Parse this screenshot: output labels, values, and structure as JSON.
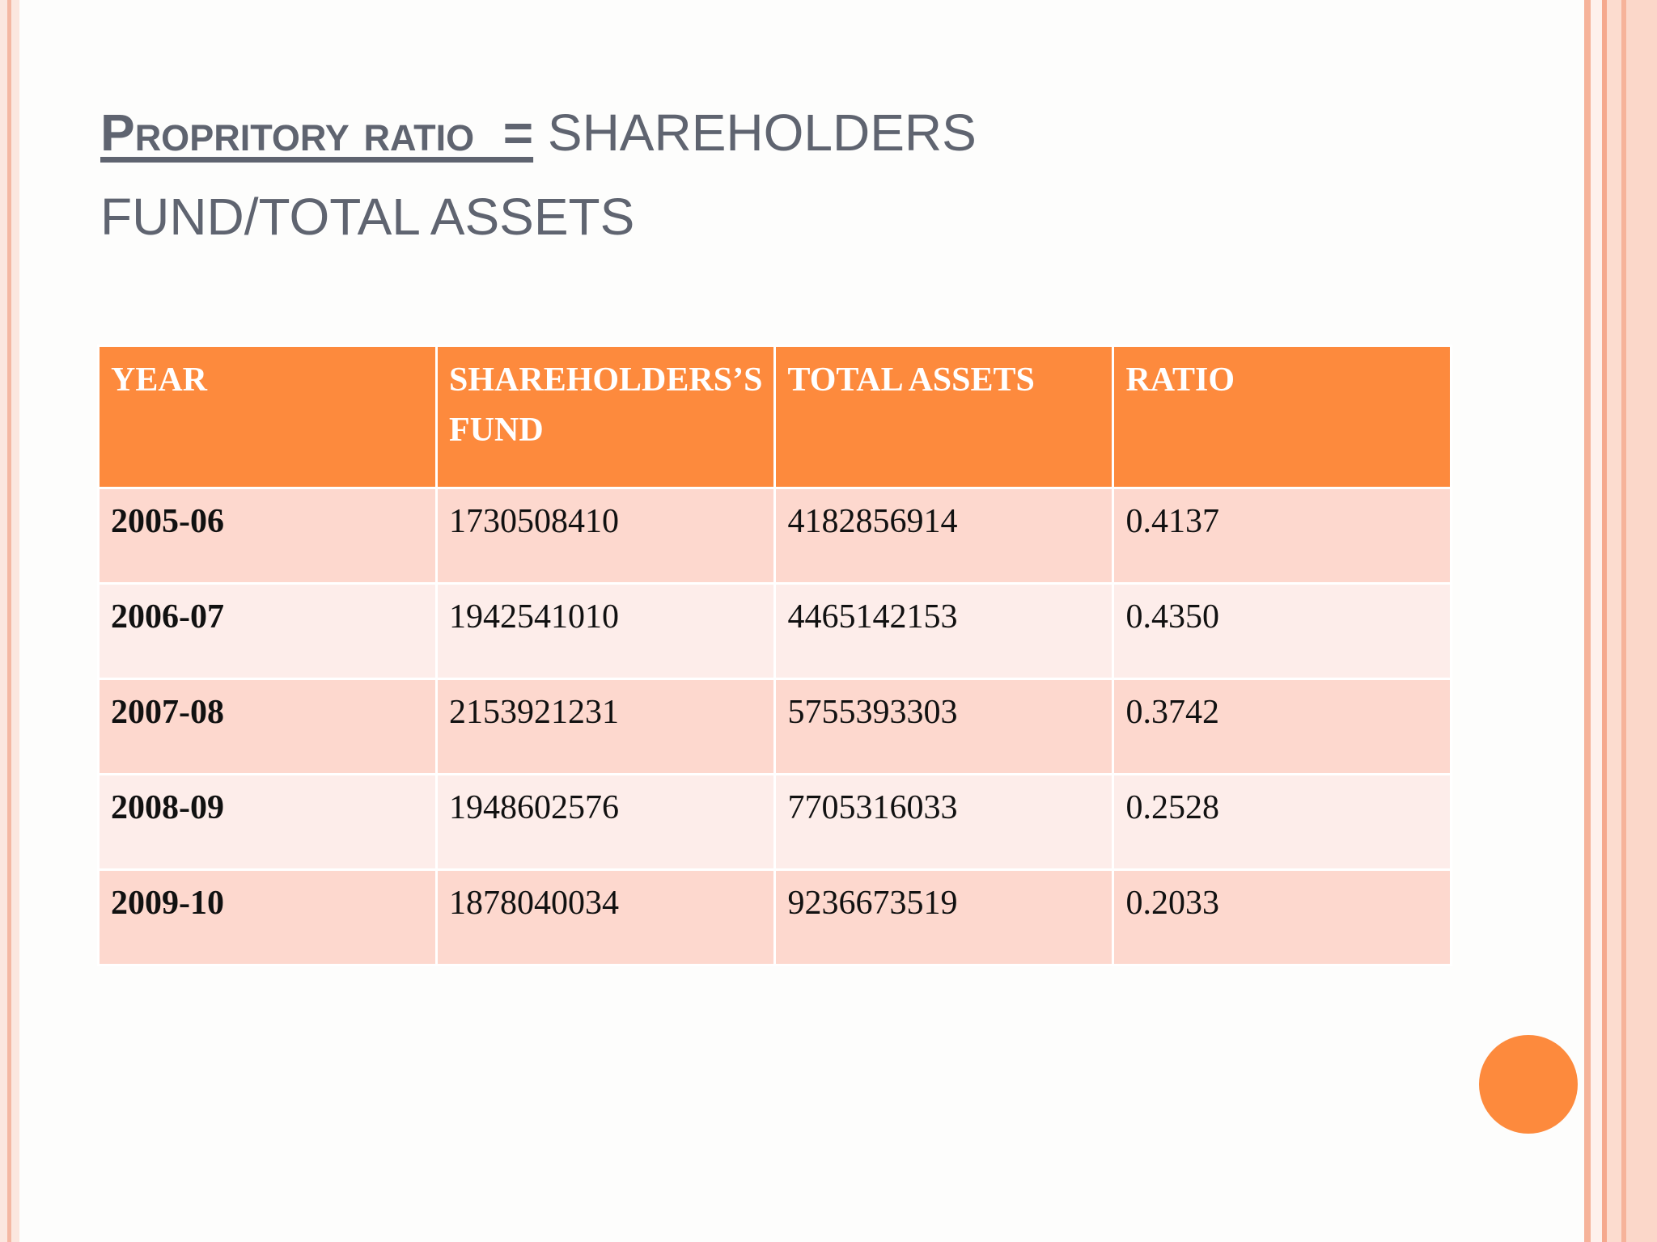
{
  "slide": {
    "title_bold": "Propritory ratio  =",
    "title_rest_line1": " SHAREHOLDERS",
    "title_rest_line2": "FUND/TOTAL ASSETS"
  },
  "table": {
    "headers": [
      "YEAR",
      "SHAREHOLDERS’S FUND",
      "TOTAL ASSETS",
      "RATIO"
    ],
    "rows": [
      {
        "year": "2005-06",
        "fund": "1730508410",
        "assets": "4182856914",
        "ratio": "0.4137"
      },
      {
        "year": "2006-07",
        "fund": "1942541010",
        "assets": "4465142153",
        "ratio": "0.4350"
      },
      {
        "year": "2007-08",
        "fund": "2153921231",
        "assets": "5755393303",
        "ratio": "0.3742"
      },
      {
        "year": "2008-09",
        "fund": "1948602576",
        "assets": "7705316033",
        "ratio": "0.2528"
      },
      {
        "year": "2009-10",
        "fund": "1878040034",
        "assets": "9236673519",
        "ratio": "0.2033"
      }
    ]
  },
  "colors": {
    "accent": "#fd8a3d",
    "row_odd": "#fdd8ce",
    "row_even": "#fdedea",
    "title_text": "#5f6470"
  }
}
